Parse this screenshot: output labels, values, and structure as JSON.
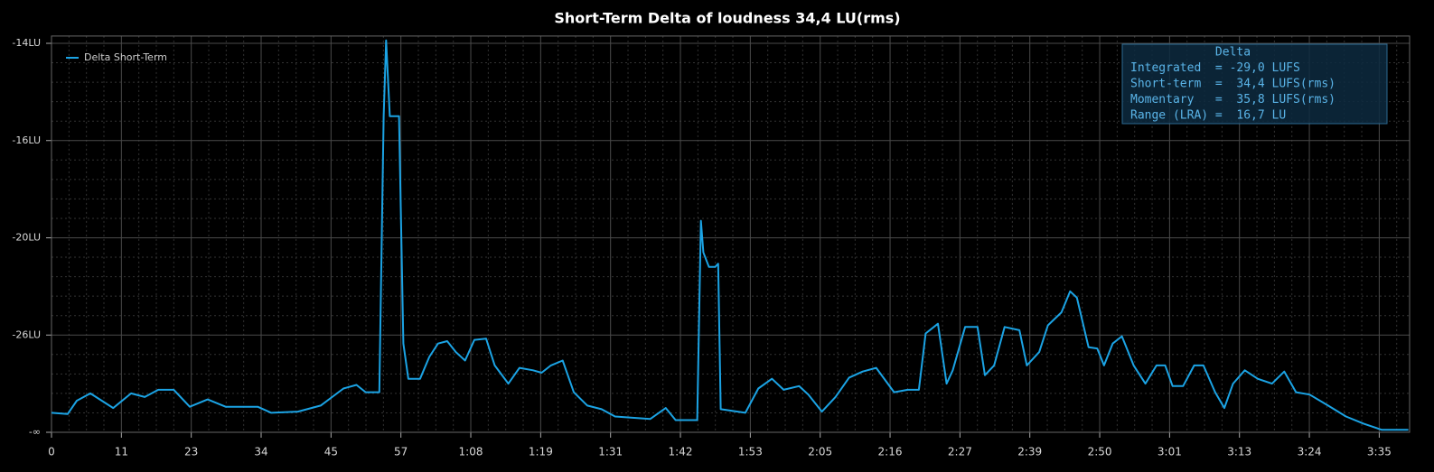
{
  "chart_data": {
    "type": "line",
    "title": "Short-Term Delta of loudness 34,4 LU(rms)",
    "x": [
      0,
      2.6,
      4.1,
      6.3,
      10.0,
      12.9,
      15.1,
      17.3,
      19.8,
      22.4,
      25.3,
      28.2,
      33.4,
      35.6,
      39.9,
      43.6,
      47.3,
      49.4,
      50.9,
      53.1,
      53.8,
      54.2,
      54.8,
      56.3,
      57.0,
      57.8,
      59.7,
      61.2,
      62.6,
      64.1,
      65.5,
      67.0,
      68.5,
      70.4,
      71.8,
      74.0,
      75.8,
      78.0,
      79.4,
      80.9,
      82.8,
      84.6,
      86.8,
      89.1,
      91.3,
      97.0,
      99.5,
      101.1,
      104.6,
      105.2,
      105.6,
      106.5,
      107.5,
      108.0,
      108.4,
      112.4,
      114.5,
      116.7,
      118.6,
      121.1,
      122.6,
      124.8,
      127.0,
      129.2,
      131.4,
      133.6,
      136.5,
      138.7,
      140.5,
      141.6,
      143.6,
      145.0,
      146.0,
      148.0,
      150.0,
      151.2,
      152.7,
      154.4,
      156.8,
      158.0,
      160.0,
      161.4,
      163.6,
      165.0,
      166.1,
      168.0,
      169.4,
      170.5,
      171.9,
      173.4,
      175.3,
      177.2,
      179.0,
      180.4,
      181.6,
      183.3,
      185.1,
      186.6,
      188.5,
      190.0,
      191.4,
      193.3,
      195.4,
      197.7,
      199.7,
      201.6,
      203.8,
      206.8,
      209.7,
      212.6,
      215.5,
      219.8
    ],
    "series": [
      {
        "name": "Delta Short-Term",
        "color": "#1ba3e4",
        "values": [
          -32.4,
          -32.5,
          -31.4,
          -30.8,
          -32.0,
          -30.8,
          -31.1,
          -30.5,
          -30.5,
          -31.9,
          -31.3,
          -31.9,
          -31.9,
          -32.4,
          -32.3,
          -31.8,
          -30.4,
          -30.1,
          -30.7,
          -30.7,
          -15.5,
          -13.94,
          -15.5,
          -15.5,
          -26.7,
          -29.6,
          -29.6,
          -27.8,
          -26.7,
          -26.5,
          -27.4,
          -28.1,
          -26.4,
          -26.3,
          -28.5,
          -30.0,
          -28.7,
          -28.9,
          -29.1,
          -28.5,
          -28.1,
          -30.7,
          -31.8,
          -32.1,
          -32.7,
          -32.9,
          -32.0,
          -33.0,
          -33.0,
          -19.3,
          -20.9,
          -21.8,
          -21.8,
          -21.6,
          -32.1,
          -32.4,
          -30.4,
          -29.6,
          -30.5,
          -30.2,
          -30.9,
          -32.3,
          -31.1,
          -29.5,
          -29.0,
          -28.7,
          -30.7,
          -30.5,
          -30.5,
          -25.9,
          -25.3,
          -30.0,
          -28.9,
          -25.5,
          -25.5,
          -29.3,
          -28.5,
          -25.5,
          -25.7,
          -28.5,
          -27.4,
          -25.4,
          -24.6,
          -23.3,
          -23.7,
          -27.0,
          -27.1,
          -28.5,
          -26.7,
          -26.1,
          -28.5,
          -30.0,
          -28.5,
          -28.5,
          -30.2,
          -30.2,
          -28.5,
          -28.5,
          -30.7,
          -32.0,
          -30.0,
          -28.9,
          -29.6,
          -30.0,
          -29.0,
          -30.7,
          -30.9,
          -31.8,
          -32.7,
          -33.3,
          -33.8,
          -33.8
        ]
      }
    ],
    "xlim": [
      0,
      220
    ],
    "xticks": [
      0,
      {
        "value": 11.32,
        "label": "11"
      },
      {
        "value": 22.64,
        "label": "23"
      },
      {
        "value": 33.96,
        "label": "34"
      },
      {
        "value": 45.28,
        "label": "45"
      },
      {
        "value": 56.6,
        "label": "57"
      },
      {
        "value": 67.92,
        "label": "1:08"
      },
      {
        "value": 79.24,
        "label": "1:19"
      },
      {
        "value": 90.56,
        "label": "1:31"
      },
      {
        "value": 101.88,
        "label": "1:42"
      },
      {
        "value": 113.2,
        "label": "1:53"
      },
      {
        "value": 124.52,
        "label": "2:05"
      },
      {
        "value": 135.84,
        "label": "2:16"
      },
      {
        "value": 147.16,
        "label": "2:27"
      },
      {
        "value": 158.48,
        "label": "2:39"
      },
      {
        "value": 169.8,
        "label": "2:50"
      },
      {
        "value": 181.12,
        "label": "3:01"
      },
      {
        "value": 192.44,
        "label": "3:13"
      },
      {
        "value": 203.76,
        "label": "3:24"
      },
      {
        "value": 215.08,
        "label": "3:35"
      }
    ],
    "ylim": [
      -34,
      -13.85
    ],
    "yscale": "equidistant-ticks",
    "yticks": [
      {
        "value": -34,
        "label": "-∞"
      },
      {
        "value": -26,
        "label": "-26LU"
      },
      {
        "value": -20,
        "label": "-20LU"
      },
      {
        "value": -16,
        "label": "-16LU"
      },
      {
        "value": -14,
        "label": "-14LU"
      }
    ],
    "grid": true,
    "legend": "top-left",
    "annotation": [
      "            Delta",
      "Integrated  = -29,0 LUFS",
      "Short-term  =  34,4 LUFS(rms)",
      "Momentary   =  35,8 LUFS(rms)",
      "Range (LRA) =  16,7 LU"
    ]
  }
}
